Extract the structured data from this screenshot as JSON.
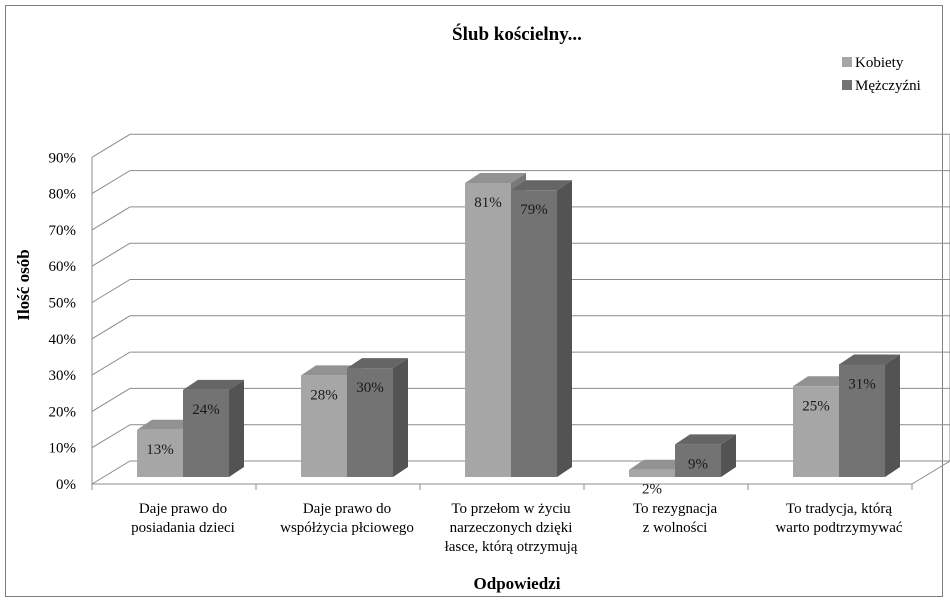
{
  "chart_data": {
    "type": "bar",
    "title": "Ślub kościelny...",
    "xlabel": "Odpowiedzi",
    "ylabel": "Ilość osób",
    "ylim": [
      0,
      90
    ],
    "yticks": [
      "0%",
      "10%",
      "20%",
      "30%",
      "40%",
      "50%",
      "60%",
      "70%",
      "80%",
      "90%"
    ],
    "grid": true,
    "legend_position": "top-right",
    "categories": [
      [
        "Daje prawo do",
        "posiadania dzieci"
      ],
      [
        "Daje prawo do",
        "współżycia płciowego"
      ],
      [
        "To przełom w życiu",
        "narzeczonych dzięki",
        "łasce, którą otrzymują"
      ],
      [
        "To rezygnacja",
        "z wolności"
      ],
      [
        "To tradycja, którą",
        "warto podtrzymywać"
      ]
    ],
    "series": [
      {
        "name": "Kobiety",
        "values": [
          13,
          28,
          81,
          2,
          25
        ],
        "labels": [
          "13%",
          "28%",
          "81%",
          "2%",
          "25%"
        ],
        "color": "#a6a6a6"
      },
      {
        "name": "Mężczyźni",
        "values": [
          24,
          30,
          79,
          9,
          31
        ],
        "labels": [
          "24%",
          "30%",
          "79%",
          "9%",
          "31%"
        ],
        "color": "#737373"
      }
    ]
  }
}
